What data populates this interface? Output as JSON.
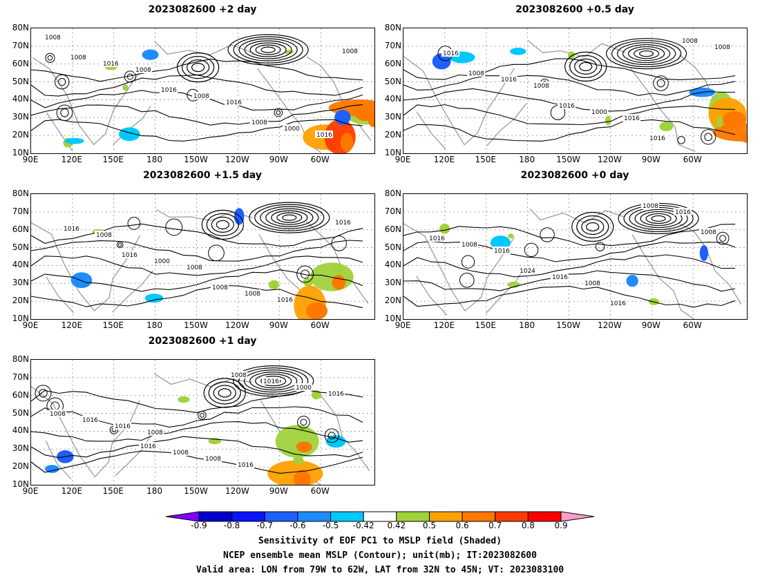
{
  "figure": {
    "panels": [
      {
        "title": "2023082600 +2 day",
        "col": 0,
        "row": 0,
        "contour_labels": [
          "1008",
          "1008",
          "1016",
          "1016",
          "1016",
          "1008",
          "1000",
          "1008",
          "1016",
          "1008",
          "1008"
        ],
        "orange_patches": 4,
        "blue_patches": 4
      },
      {
        "title": "2023082600 +0.5 day",
        "col": 1,
        "row": 0,
        "contour_labels": [
          "1016",
          "1008",
          "1016",
          "1008",
          "1016",
          "1000",
          "1008",
          "1008",
          "1016",
          "1016"
        ],
        "orange_patches": 3,
        "blue_patches": 4
      },
      {
        "title": "2023082600 +1.5 day",
        "col": 0,
        "row": 1,
        "contour_labels": [
          "1008",
          "1008",
          "1016",
          "1016",
          "1000",
          "1008",
          "1016",
          "1016",
          "1008"
        ],
        "orange_patches": 2,
        "blue_patches": 3
      },
      {
        "title": "2023082600 +0 day",
        "col": 1,
        "row": 1,
        "contour_labels": [
          "1016",
          "1008",
          "1016",
          "1008",
          "1016",
          "1008",
          "1016",
          "1024",
          "1016",
          "1008"
        ],
        "orange_patches": 0,
        "blue_patches": 3
      },
      {
        "title": "2023082600 +1 day",
        "col": 0,
        "row": 2,
        "contour_labels": [
          "1008",
          "1016",
          "1016",
          "1016",
          "1008",
          "1000",
          "1016",
          "1008",
          "1016",
          "1008",
          "1016",
          "1008"
        ],
        "orange_patches": 2,
        "blue_patches": 3
      }
    ],
    "lat_labels": [
      "80N",
      "70N",
      "60N",
      "50N",
      "40N",
      "30N",
      "20N",
      "10N"
    ],
    "lon_labels": [
      "90E",
      "120E",
      "150E",
      "180",
      "150W",
      "120W",
      "90W",
      "60W"
    ],
    "colorbar": {
      "labels": [
        "-0.9",
        "-0.8",
        "-0.7",
        "-0.6",
        "-0.5",
        "-0.42",
        "0.42",
        "0.5",
        "0.6",
        "0.7",
        "0.8",
        "0.9"
      ],
      "colors": [
        "#7f00ff",
        "#0000c8",
        "#0a14ff",
        "#1e5fff",
        "#1e8cff",
        "#00c8ff",
        "#ffffff",
        "#a0d23c",
        "#ffa000",
        "#ff7800",
        "#ff3c00",
        "#ff0000",
        "#ff9ec8"
      ]
    },
    "caption": [
      "Sensitivity of EOF PC1 to MSLP field (Shaded)",
      "NCEP ensemble mean MSLP (Contour); unit(mb); IT:2023082600",
      "Valid area: LON from 79W to 62W, LAT from 32N to 45N; VT: 2023083100"
    ]
  }
}
